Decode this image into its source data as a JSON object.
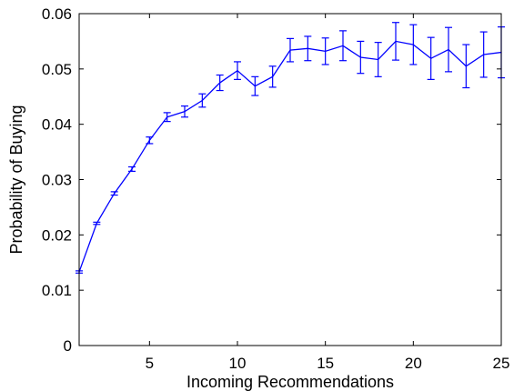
{
  "chart_data": {
    "type": "line",
    "title": "",
    "xlabel": "Incoming Recommendations",
    "ylabel": "Probability of Buying",
    "xlim": [
      1,
      25
    ],
    "ylim": [
      0,
      0.06
    ],
    "xticks": [
      5,
      10,
      15,
      20,
      25
    ],
    "xtick_labels": [
      "5",
      "10",
      "15",
      "20",
      "25"
    ],
    "yticks": [
      0,
      0.01,
      0.02,
      0.03,
      0.04,
      0.05,
      0.06
    ],
    "ytick_labels": [
      "0",
      "0.01",
      "0.02",
      "0.03",
      "0.04",
      "0.05",
      "0.06"
    ],
    "grid": false,
    "legend": "none",
    "series": [
      {
        "color": "#0000ff",
        "error_bars": true,
        "x": [
          1,
          2,
          3,
          4,
          5,
          6,
          7,
          8,
          9,
          10,
          11,
          12,
          13,
          14,
          15,
          16,
          17,
          18,
          19,
          20,
          21,
          22,
          23,
          24,
          25
        ],
        "y": [
          0.0133,
          0.0221,
          0.0275,
          0.0319,
          0.0371,
          0.0413,
          0.0423,
          0.0443,
          0.0475,
          0.0497,
          0.0469,
          0.0486,
          0.0534,
          0.0537,
          0.0532,
          0.0542,
          0.0521,
          0.0517,
          0.055,
          0.0544,
          0.0519,
          0.0535,
          0.0505,
          0.0526,
          0.053
        ],
        "err": [
          0.0002,
          0.0002,
          0.0003,
          0.0004,
          0.0006,
          0.0008,
          0.001,
          0.0012,
          0.0014,
          0.0016,
          0.0017,
          0.0019,
          0.0021,
          0.0022,
          0.0024,
          0.0027,
          0.0029,
          0.0031,
          0.0034,
          0.0036,
          0.0038,
          0.004,
          0.0039,
          0.0041,
          0.0046
        ]
      }
    ]
  }
}
